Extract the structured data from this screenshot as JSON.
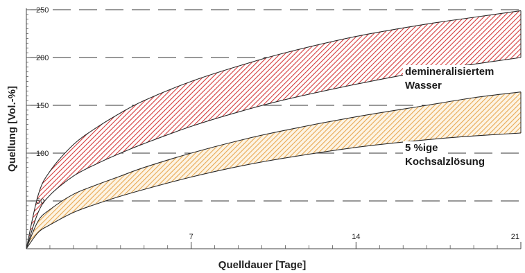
{
  "chart_data": {
    "type": "area",
    "xlabel": "Quelldauer [Tage]",
    "ylabel": "Quellung [Vol.-%]",
    "xlim": [
      0,
      21
    ],
    "ylim": [
      0,
      250
    ],
    "x_ticks": [
      7,
      14,
      21
    ],
    "y_ticks": [
      50,
      100,
      150,
      200,
      250
    ],
    "grid": "horizontal dashed",
    "series": [
      {
        "name": "demineralisiertem Wasser",
        "label_lines": [
          "demineralisiertem",
          "Wasser"
        ],
        "color": "#d43a3a",
        "x": [
          0,
          0.5,
          1,
          2,
          3,
          4,
          5,
          7,
          9,
          11,
          14,
          17,
          19,
          21
        ],
        "upper": [
          0,
          56,
          81,
          109,
          127,
          142,
          155,
          175,
          191,
          205,
          222,
          235,
          242,
          249
        ],
        "lower": [
          0,
          38,
          56,
          76,
          89,
          100,
          110,
          128,
          143,
          156,
          172,
          186,
          193,
          200
        ]
      },
      {
        "name": "5 %ige Kochsalzlösung",
        "label_lines": [
          "5 %ige",
          "Kochsalzlösung"
        ],
        "color": "#e8a852",
        "x": [
          0,
          0.5,
          1,
          2,
          3,
          4,
          5,
          7,
          9,
          11,
          14,
          17,
          19,
          21
        ],
        "upper": [
          0,
          29,
          41,
          57,
          67,
          76,
          85,
          100,
          113,
          124,
          138,
          150,
          158,
          164
        ],
        "lower": [
          0,
          17,
          25,
          38,
          47,
          55,
          62,
          75,
          86,
          95,
          106,
          114,
          118,
          121
        ]
      }
    ]
  }
}
